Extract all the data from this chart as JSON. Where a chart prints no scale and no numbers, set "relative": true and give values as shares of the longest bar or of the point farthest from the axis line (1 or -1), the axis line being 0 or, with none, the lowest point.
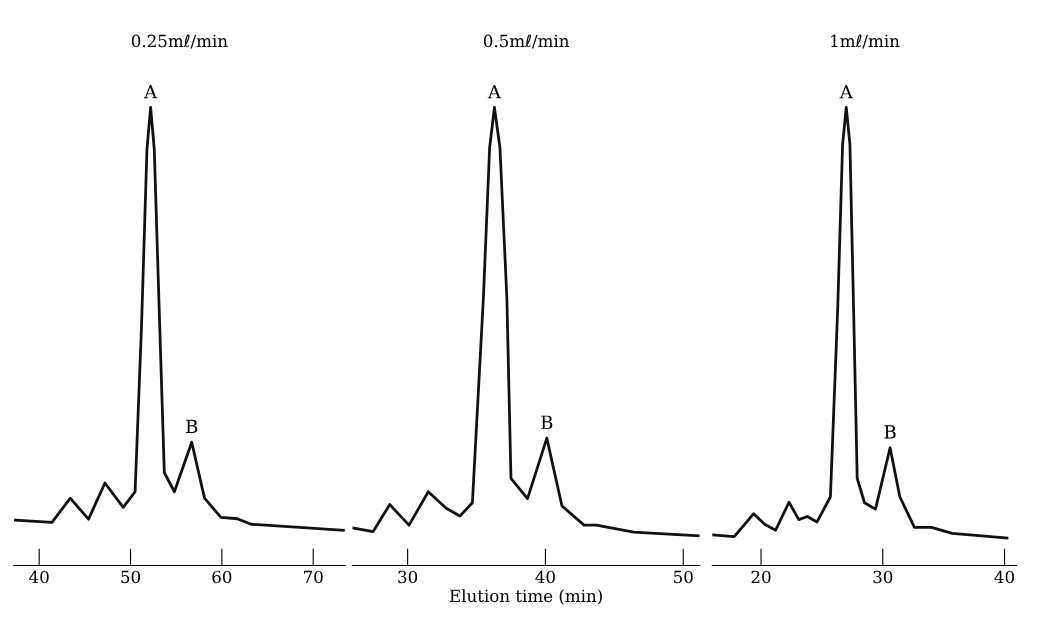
{
  "chart_data": [
    {
      "type": "line",
      "title": "0.25mℓ/min",
      "relative": true,
      "color": "#111111",
      "xlim": [
        37.2,
        73.5
      ],
      "xticks": [
        40,
        50,
        60,
        70
      ],
      "x": [
        37.4,
        41.4,
        43.4,
        45.4,
        47.2,
        49.2,
        50.5,
        51.2,
        51.8,
        52.2,
        52.6,
        53.2,
        53.7,
        54.8,
        56.7,
        58.1,
        59.9,
        61.7,
        63.2,
        73.3
      ],
      "values": [
        0.099,
        0.094,
        0.147,
        0.101,
        0.18,
        0.127,
        0.161,
        0.52,
        0.909,
        1.0,
        0.909,
        0.52,
        0.203,
        0.161,
        0.269,
        0.147,
        0.105,
        0.102,
        0.09,
        0.077
      ],
      "annotations": [
        {
          "text": "A",
          "x": 52.2,
          "y": 1.0
        },
        {
          "text": "B",
          "x": 56.7,
          "y": 0.269
        }
      ]
    },
    {
      "type": "line",
      "title": "0.5mℓ/min",
      "relative": true,
      "color": "#111111",
      "xlim": [
        26,
        51.2
      ],
      "xticks": [
        30,
        40,
        50
      ],
      "xlabel": "Elution time (min)",
      "x": [
        26.0,
        27.5,
        28.7,
        30.1,
        31.5,
        32.8,
        33.8,
        34.7,
        35.5,
        35.95,
        36.3,
        36.7,
        37.2,
        37.5,
        38.7,
        40.1,
        41.2,
        42.8,
        43.7,
        46.4,
        51.1
      ],
      "values": [
        0.082,
        0.074,
        0.133,
        0.088,
        0.161,
        0.125,
        0.108,
        0.137,
        0.585,
        0.912,
        1.0,
        0.912,
        0.585,
        0.19,
        0.146,
        0.278,
        0.13,
        0.088,
        0.088,
        0.073,
        0.065
      ],
      "annotations": [
        {
          "text": "A",
          "x": 36.3,
          "y": 1.0
        },
        {
          "text": "B",
          "x": 40.1,
          "y": 0.278
        }
      ]
    },
    {
      "type": "line",
      "title": "1mℓ/min",
      "relative": true,
      "color": "#111111",
      "xlim": [
        16,
        41
      ],
      "xticks": [
        20,
        30,
        40
      ],
      "x": [
        16.0,
        17.8,
        19.4,
        20.3,
        21.2,
        22.3,
        23.1,
        23.8,
        24.6,
        25.7,
        26.3,
        26.7,
        27.0,
        27.3,
        27.6,
        27.9,
        28.5,
        29.4,
        30.6,
        31.4,
        32.6,
        34.0,
        35.7,
        40.2
      ],
      "values": [
        0.067,
        0.063,
        0.113,
        0.09,
        0.077,
        0.138,
        0.1,
        0.107,
        0.095,
        0.15,
        0.563,
        0.92,
        1.0,
        0.92,
        0.563,
        0.19,
        0.137,
        0.123,
        0.257,
        0.15,
        0.083,
        0.083,
        0.07,
        0.06
      ],
      "annotations": [
        {
          "text": "A",
          "x": 27.0,
          "y": 1.0
        },
        {
          "text": "B",
          "x": 30.6,
          "y": 0.257
        }
      ]
    }
  ]
}
